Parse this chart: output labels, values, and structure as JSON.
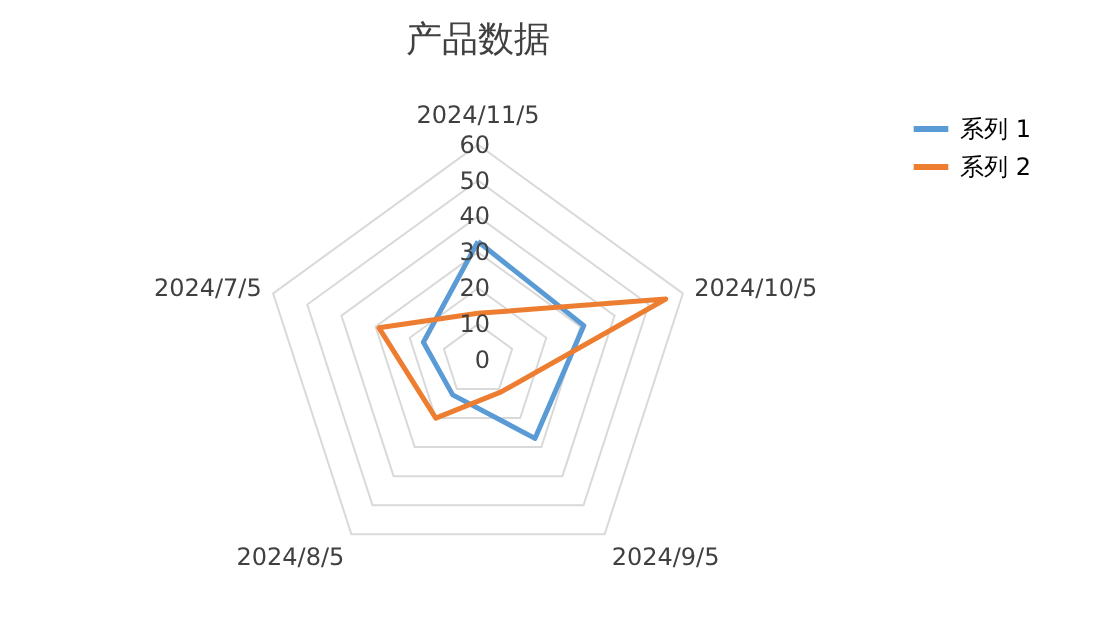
{
  "chart_data": {
    "type": "radar",
    "title": "产品数据",
    "categories": [
      "2024/11/5",
      "2024/10/5",
      "2024/9/5",
      "2024/8/5",
      "2024/7/5"
    ],
    "series": [
      {
        "name": "系列 1",
        "color": "#5b9bd5",
        "values": [
          33,
          31,
          27,
          12,
          16
        ]
      },
      {
        "name": "系列 2",
        "color": "#ed7d31",
        "values": [
          13,
          55,
          11,
          20,
          29
        ]
      }
    ],
    "ylim": [
      0,
      60
    ],
    "yticks": [
      0,
      10,
      20,
      30,
      40,
      50,
      60
    ],
    "grid": true,
    "legend": "right"
  }
}
